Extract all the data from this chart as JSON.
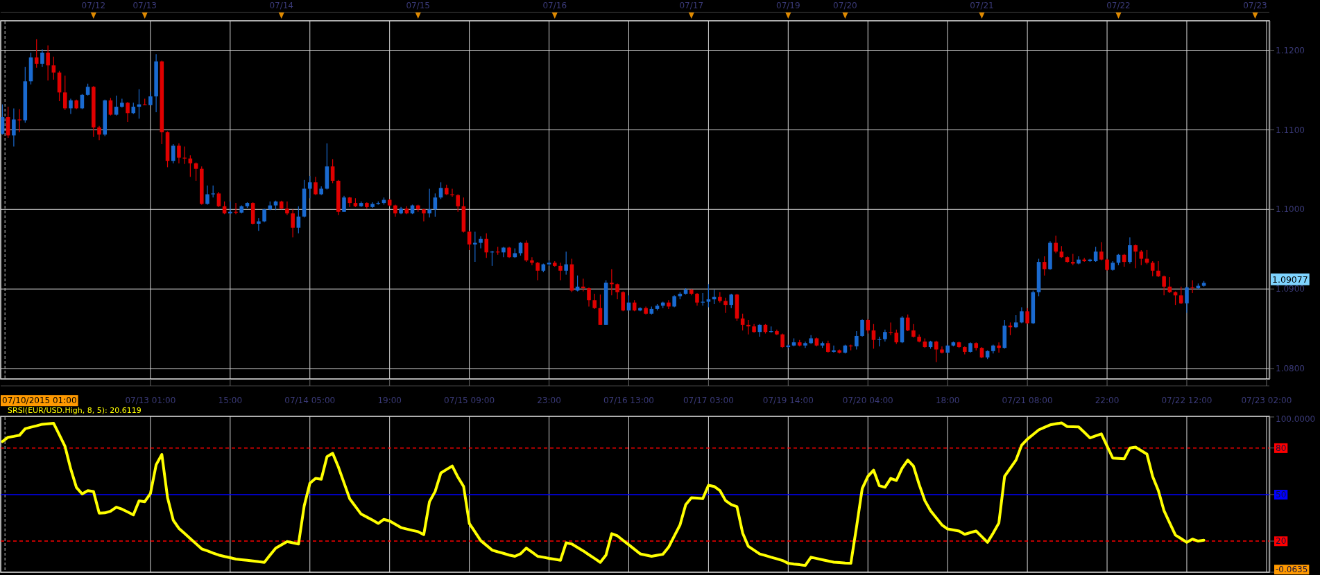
{
  "chart_data": [
    {
      "type": "other",
      "categories": [
        null,
        null,
        null,
        null,
        null,
        null,
        null,
        null,
        null,
        null,
        null,
        null,
        null,
        null,
        null,
        null,
        "07/12",
        null,
        null,
        null,
        null,
        null,
        null,
        null,
        null,
        "07/13",
        null,
        null,
        null,
        null,
        null,
        null,
        null,
        null,
        null,
        null,
        null,
        null,
        null,
        null,
        null,
        null,
        null,
        null,
        null,
        null,
        null,
        null,
        null,
        "07/14",
        null,
        null,
        null,
        null,
        null,
        null,
        null,
        null,
        null,
        null,
        null,
        null,
        null,
        null,
        null,
        null,
        null,
        null,
        null,
        null,
        null,
        null,
        null,
        "07/15",
        null,
        null,
        null,
        null,
        null,
        null,
        null,
        null,
        null,
        null,
        null,
        null,
        null,
        null,
        null,
        null,
        null,
        null,
        null,
        null,
        null,
        null,
        null,
        "07/16",
        null,
        null,
        null,
        null,
        null,
        null,
        null,
        null,
        null,
        null,
        null,
        null,
        null,
        null,
        null,
        null,
        null,
        null,
        null,
        null,
        null,
        null,
        null,
        "07/17",
        null,
        null,
        null,
        null,
        null,
        null,
        null,
        null,
        null,
        null,
        null,
        null,
        null,
        null,
        null,
        null,
        "07/19",
        null,
        null,
        null,
        null,
        null,
        null,
        null,
        null,
        null,
        "07/20",
        null,
        null,
        null,
        null,
        null,
        null,
        null,
        null,
        null,
        null,
        null,
        null,
        null,
        null,
        null,
        null,
        null,
        null,
        null,
        null,
        null,
        null,
        null,
        "07/21",
        null,
        null,
        null,
        null,
        null,
        null,
        null,
        null,
        null,
        null,
        null,
        null,
        null,
        null,
        null,
        null,
        null,
        null,
        null,
        null,
        null,
        null,
        null,
        "07/22",
        null,
        null,
        null,
        null,
        null,
        null,
        null,
        null,
        null,
        null,
        null,
        null,
        null,
        null,
        null,
        null,
        null,
        null,
        null,
        null,
        null,
        null,
        null,
        "07/23",
        null,
        null
      ]
    },
    {
      "type": "candlestick",
      "ylim": [
        1.0787,
        1.1237
      ],
      "categories": [
        null,
        null,
        null,
        null,
        null,
        null,
        null,
        null,
        null,
        null,
        null,
        null,
        null,
        null,
        null,
        null,
        null,
        null,
        null,
        null,
        null,
        null,
        null,
        null,
        null,
        null,
        "07/13 01:00",
        null,
        null,
        null,
        null,
        null,
        null,
        null,
        null,
        null,
        null,
        null,
        null,
        null,
        "15:00",
        null,
        null,
        null,
        null,
        null,
        null,
        null,
        null,
        null,
        null,
        null,
        null,
        null,
        "07/14 05:00",
        null,
        null,
        null,
        null,
        null,
        null,
        null,
        null,
        null,
        null,
        null,
        null,
        null,
        "19:00",
        null,
        null,
        null,
        null,
        null,
        null,
        null,
        null,
        null,
        null,
        null,
        null,
        null,
        "07/15 09:00",
        null,
        null,
        null,
        null,
        null,
        null,
        null,
        null,
        null,
        null,
        null,
        null,
        null,
        "23:00",
        null,
        null,
        null,
        null,
        null,
        null,
        null,
        null,
        null,
        null,
        null,
        null,
        null,
        "07/16 13:00",
        null,
        null,
        null,
        null,
        null,
        null,
        null,
        null,
        null,
        null,
        null,
        null,
        null,
        "07/17 03:00",
        null,
        null,
        null,
        null,
        null,
        null,
        null,
        null,
        null,
        null,
        null,
        null,
        null,
        "07/19 14:00",
        null,
        null,
        null,
        null,
        null,
        null,
        null,
        null,
        null,
        null,
        null,
        null,
        null,
        "07/20 04:00",
        null,
        null,
        null,
        null,
        null,
        null,
        null,
        null,
        null,
        null,
        null,
        null,
        null,
        "18:00",
        null,
        null,
        null,
        null,
        null,
        null,
        null,
        null,
        null,
        null,
        null,
        null,
        null,
        "07/21 08:00",
        null,
        null,
        null,
        null,
        null,
        null,
        null,
        null,
        null,
        null,
        null,
        null,
        null,
        "22:00",
        null,
        null,
        null,
        null,
        null,
        null,
        null,
        null,
        null,
        null,
        null,
        null,
        null,
        "07/22 12:00",
        null,
        null,
        null,
        null,
        null,
        null,
        null,
        null,
        null,
        null,
        null,
        null,
        null,
        "07/23 02:00"
      ],
      "ohlc": [
        [
          1.1095,
          1.1132,
          1.1094,
          1.1116
        ],
        [
          1.1116,
          1.1129,
          1.109,
          1.1093
        ],
        [
          1.1093,
          1.1127,
          1.1079,
          1.1113
        ],
        [
          1.1113,
          1.1126,
          1.1097,
          1.1112
        ],
        [
          1.1112,
          1.1179,
          1.1109,
          1.1161
        ],
        [
          1.1161,
          1.1197,
          1.1157,
          1.1191
        ],
        [
          1.1191,
          1.1214,
          1.1178,
          1.1183
        ],
        [
          1.1183,
          1.1201,
          1.1179,
          1.1197
        ],
        [
          1.1197,
          1.1206,
          1.1162,
          1.1181
        ],
        [
          1.1181,
          1.1192,
          1.1163,
          1.1172
        ],
        [
          1.1172,
          1.1174,
          1.1136,
          1.1147
        ],
        [
          1.1147,
          1.1168,
          1.1125,
          1.1127
        ],
        [
          1.1127,
          1.1139,
          1.112,
          1.1137
        ],
        [
          1.1137,
          1.1138,
          1.1126,
          1.1127
        ],
        [
          1.1127,
          1.1145,
          1.1126,
          1.1144
        ],
        [
          1.1144,
          1.1158,
          1.1143,
          1.1154
        ],
        [
          1.1154,
          1.1155,
          1.1091,
          1.1103
        ],
        [
          1.1103,
          1.1105,
          1.1087,
          1.1094
        ],
        [
          1.1094,
          1.1138,
          1.1092,
          1.1137
        ],
        [
          1.1137,
          1.114,
          1.1118,
          1.1119
        ],
        [
          1.1119,
          1.1143,
          1.1118,
          1.1129
        ],
        [
          1.1129,
          1.1139,
          1.1128,
          1.1134
        ],
        [
          1.1134,
          1.1135,
          1.111,
          1.1121
        ],
        [
          1.1121,
          1.1134,
          1.112,
          1.1129
        ],
        [
          1.1129,
          1.1151,
          1.1114,
          1.1132
        ],
        [
          1.1132,
          1.1139,
          1.1131,
          1.1131
        ],
        [
          1.1131,
          1.1148,
          1.1131,
          1.1142
        ],
        [
          1.1142,
          1.1195,
          1.1122,
          1.1186
        ],
        [
          1.1186,
          1.1187,
          1.1082,
          1.1097
        ],
        [
          1.1097,
          1.1098,
          1.1053,
          1.1061
        ],
        [
          1.1061,
          1.1082,
          1.1058,
          1.108
        ],
        [
          1.108,
          1.1083,
          1.1058,
          1.1065
        ],
        [
          1.1065,
          1.1079,
          1.1057,
          1.1064
        ],
        [
          1.1064,
          1.1068,
          1.1041,
          1.1058
        ],
        [
          1.1058,
          1.1059,
          1.1036,
          1.1051
        ],
        [
          1.1051,
          1.1054,
          1.1006,
          1.1007
        ],
        [
          1.1007,
          1.103,
          1.1006,
          1.1019
        ],
        [
          1.1019,
          1.103,
          1.1015,
          1.102
        ],
        [
          1.102,
          1.1022,
          1.1003,
          1.1004
        ],
        [
          1.1004,
          1.101,
          1.0994,
          1.0995
        ],
        [
          1.0995,
          1.101,
          1.0994,
          1.0997
        ],
        [
          1.0997,
          1.1008,
          1.0994,
          1.0996
        ],
        [
          1.0996,
          1.1005,
          1.0995,
          1.1004
        ],
        [
          1.1004,
          1.1009,
          1.1002,
          1.1008
        ],
        [
          1.1008,
          1.1009,
          1.0981,
          1.0982
        ],
        [
          1.0982,
          1.0989,
          1.0973,
          1.0985
        ],
        [
          1.0985,
          1.1001,
          1.0984,
          1.1
        ],
        [
          1.1,
          1.101,
          1.0999,
          1.1005
        ],
        [
          1.1005,
          1.1011,
          1.0999,
          1.101
        ],
        [
          1.101,
          1.1011,
          1.1,
          1.1001
        ],
        [
          1.1001,
          1.101,
          1.0993,
          1.0995
        ],
        [
          1.0995,
          1.1,
          1.0965,
          1.0977
        ],
        [
          1.0977,
          1.1004,
          1.097,
          1.0991
        ],
        [
          1.0991,
          1.1037,
          1.099,
          1.1026
        ],
        [
          1.1026,
          1.1042,
          1.1014,
          1.1034
        ],
        [
          1.1034,
          1.1041,
          1.1018,
          1.1019
        ],
        [
          1.1019,
          1.1029,
          1.1018,
          1.1026
        ],
        [
          1.1026,
          1.1083,
          1.1025,
          1.1054
        ],
        [
          1.1054,
          1.1063,
          1.1033,
          1.1036
        ],
        [
          1.1036,
          1.1037,
          1.0993,
          1.0997
        ],
        [
          1.0997,
          1.1017,
          1.0997,
          1.1015
        ],
        [
          1.1015,
          1.1016,
          1.1003,
          1.1008
        ],
        [
          1.1008,
          1.1014,
          1.1003,
          1.1004
        ],
        [
          1.1004,
          1.101,
          1.1003,
          1.1008
        ],
        [
          1.1008,
          1.1009,
          1.1001,
          1.1003
        ],
        [
          1.1003,
          1.1009,
          1.1002,
          1.1007
        ],
        [
          1.1007,
          1.101,
          1.1006,
          1.1008
        ],
        [
          1.1008,
          1.1015,
          1.1006,
          1.1012
        ],
        [
          1.1012,
          1.1013,
          1.1004,
          1.1005
        ],
        [
          1.1005,
          1.1006,
          1.0991,
          1.0995
        ],
        [
          1.0995,
          1.1003,
          1.0994,
          1.1001
        ],
        [
          1.1001,
          1.1004,
          1.0994,
          1.0995
        ],
        [
          1.0995,
          1.1006,
          1.0994,
          1.1005
        ],
        [
          1.1005,
          1.1006,
          1.0997,
          1.1
        ],
        [
          1.1,
          1.1001,
          1.0985,
          1.0995
        ],
        [
          1.0995,
          1.1026,
          1.099,
          1.1
        ],
        [
          1.1,
          1.102,
          1.0991,
          1.1015
        ],
        [
          1.1015,
          1.1034,
          1.1013,
          1.1027
        ],
        [
          1.1027,
          1.1031,
          1.1018,
          1.1019
        ],
        [
          1.1019,
          1.1026,
          1.1016,
          1.1018
        ],
        [
          1.1018,
          1.1019,
          1.0997,
          1.1004
        ],
        [
          1.1004,
          1.1015,
          1.0971,
          1.0972
        ],
        [
          1.0972,
          1.0973,
          1.0949,
          1.0956
        ],
        [
          1.0956,
          1.0972,
          1.0934,
          1.0958
        ],
        [
          1.0958,
          1.0966,
          1.0951,
          1.0963
        ],
        [
          1.0963,
          1.097,
          1.0939,
          1.0946
        ],
        [
          1.0946,
          1.0948,
          1.0929,
          1.0947
        ],
        [
          1.0947,
          1.0953,
          1.0943,
          1.0946
        ],
        [
          1.0946,
          1.0953,
          1.094,
          1.0952
        ],
        [
          1.0952,
          1.0953,
          1.0939,
          1.094
        ],
        [
          1.094,
          1.0951,
          1.0939,
          1.0945
        ],
        [
          1.0945,
          1.0959,
          1.0942,
          1.0958
        ],
        [
          1.0958,
          1.0961,
          1.0934,
          1.0936
        ],
        [
          1.0936,
          1.094,
          1.093,
          1.0933
        ],
        [
          1.0933,
          1.0934,
          1.0911,
          1.0923
        ],
        [
          1.0923,
          1.0932,
          1.0921,
          1.0931
        ],
        [
          1.0931,
          1.0936,
          1.0929,
          1.0933
        ],
        [
          1.0933,
          1.0935,
          1.0928,
          1.0929
        ],
        [
          1.0929,
          1.0933,
          1.0911,
          1.0923
        ],
        [
          1.0923,
          1.0947,
          1.0918,
          1.0931
        ],
        [
          1.0931,
          1.0938,
          1.0896,
          1.0898
        ],
        [
          1.0898,
          1.0917,
          1.0897,
          1.0903
        ],
        [
          1.0903,
          1.0913,
          1.0897,
          1.0901
        ],
        [
          1.0901,
          1.0902,
          1.0878,
          1.0886
        ],
        [
          1.0886,
          1.0894,
          1.0875,
          1.0876
        ],
        [
          1.0876,
          1.0893,
          1.0855,
          1.0855
        ],
        [
          1.0855,
          1.0911,
          1.0855,
          1.0908
        ],
        [
          1.0908,
          1.0925,
          1.0892,
          1.0906
        ],
        [
          1.0906,
          1.0907,
          1.0887,
          1.0896
        ],
        [
          1.0896,
          1.0897,
          1.0872,
          1.0873
        ],
        [
          1.0873,
          1.0892,
          1.0873,
          1.0883
        ],
        [
          1.0883,
          1.0886,
          1.0872,
          1.0873
        ],
        [
          1.0873,
          1.0877,
          1.0872,
          1.0876
        ],
        [
          1.0876,
          1.0878,
          1.0868,
          1.0869
        ],
        [
          1.0869,
          1.0878,
          1.0868,
          1.0875
        ],
        [
          1.0875,
          1.0881,
          1.0873,
          1.0879
        ],
        [
          1.0879,
          1.0884,
          1.0876,
          1.0883
        ],
        [
          1.0883,
          1.0886,
          1.0875,
          1.0878
        ],
        [
          1.0878,
          1.0892,
          1.0877,
          1.0891
        ],
        [
          1.0891,
          1.0896,
          1.0887,
          1.0894
        ],
        [
          1.0894,
          1.0901,
          1.0893,
          1.0899
        ],
        [
          1.0899,
          1.09,
          1.0892,
          1.0894
        ],
        [
          1.0894,
          1.0895,
          1.0879,
          1.0883
        ],
        [
          1.0883,
          1.0895,
          1.0879,
          1.0884
        ],
        [
          1.0884,
          1.0906,
          1.0877,
          1.0887
        ],
        [
          1.0887,
          1.0899,
          1.0881,
          1.089
        ],
        [
          1.089,
          1.0896,
          1.0883,
          1.0885
        ],
        [
          1.0885,
          1.0889,
          1.087,
          1.088
        ],
        [
          1.088,
          1.0894,
          1.0876,
          1.0893
        ],
        [
          1.0893,
          1.0894,
          1.086,
          1.0863
        ],
        [
          1.0863,
          1.0869,
          1.0848,
          1.0855
        ],
        [
          1.0855,
          1.0861,
          1.0843,
          1.0853
        ],
        [
          1.0853,
          1.0856,
          1.0845,
          1.0846
        ],
        [
          1.0846,
          1.0856,
          1.084,
          1.0855
        ],
        [
          1.0855,
          1.0856,
          1.0844,
          1.0846
        ],
        [
          1.0846,
          1.0853,
          1.0845,
          1.0847
        ],
        [
          1.0847,
          1.0849,
          1.0842,
          1.0843
        ],
        [
          1.0843,
          1.0844,
          1.0826,
          1.0827
        ],
        [
          1.0827,
          1.083,
          1.0826,
          1.0829
        ],
        [
          1.0829,
          1.0838,
          1.0828,
          1.0833
        ],
        [
          1.0833,
          1.0836,
          1.0828,
          1.0829
        ],
        [
          1.0829,
          1.0834,
          1.0826,
          1.0832
        ],
        [
          1.0832,
          1.0842,
          1.0831,
          1.0838
        ],
        [
          1.0838,
          1.0839,
          1.0828,
          1.0829
        ],
        [
          1.0829,
          1.0834,
          1.0826,
          1.0832
        ],
        [
          1.0832,
          1.0835,
          1.082,
          1.0821
        ],
        [
          1.0821,
          1.0829,
          1.082,
          1.0823
        ],
        [
          1.0823,
          1.0824,
          1.0819,
          1.082
        ],
        [
          1.082,
          1.083,
          1.0819,
          1.0829
        ],
        [
          1.0829,
          1.083,
          1.0823,
          1.0828
        ],
        [
          1.0828,
          1.0847,
          1.0824,
          1.0841
        ],
        [
          1.0841,
          1.0862,
          1.084,
          1.0861
        ],
        [
          1.0861,
          1.0862,
          1.0844,
          1.0848
        ],
        [
          1.0848,
          1.0856,
          1.0825,
          1.0836
        ],
        [
          1.0836,
          1.084,
          1.0828,
          1.0837
        ],
        [
          1.0837,
          1.0849,
          1.0834,
          1.0846
        ],
        [
          1.0846,
          1.0858,
          1.0842,
          1.0845
        ],
        [
          1.0845,
          1.0849,
          1.0831,
          1.0833
        ],
        [
          1.0833,
          1.0866,
          1.0832,
          1.0864
        ],
        [
          1.0864,
          1.0868,
          1.0847,
          1.0848
        ],
        [
          1.0848,
          1.0856,
          1.0839,
          1.084
        ],
        [
          1.084,
          1.0843,
          1.0833,
          1.0834
        ],
        [
          1.0834,
          1.0838,
          1.0826,
          1.0827
        ],
        [
          1.0827,
          1.0835,
          1.0825,
          1.0834
        ],
        [
          1.0834,
          1.0835,
          1.0808,
          1.0824
        ],
        [
          1.0824,
          1.0828,
          1.0819,
          1.082
        ],
        [
          1.082,
          1.083,
          1.0819,
          1.0829
        ],
        [
          1.0829,
          1.0834,
          1.0828,
          1.0833
        ],
        [
          1.0833,
          1.0834,
          1.0826,
          1.0827
        ],
        [
          1.0827,
          1.0828,
          1.0818,
          1.0821
        ],
        [
          1.0821,
          1.0833,
          1.082,
          1.0832
        ],
        [
          1.0832,
          1.0833,
          1.0823,
          1.0826
        ],
        [
          1.0826,
          1.0827,
          1.0813,
          1.0814
        ],
        [
          1.0814,
          1.0823,
          1.0812,
          1.0822
        ],
        [
          1.0822,
          1.083,
          1.0819,
          1.0829
        ],
        [
          1.0829,
          1.0833,
          1.082,
          1.0826
        ],
        [
          1.0826,
          1.0861,
          1.0825,
          1.0854
        ],
        [
          1.0854,
          1.0858,
          1.0842,
          1.0852
        ],
        [
          1.0852,
          1.0867,
          1.0851,
          1.0858
        ],
        [
          1.0858,
          1.0877,
          1.0857,
          1.0872
        ],
        [
          1.0872,
          1.0876,
          1.0856,
          1.0857
        ],
        [
          1.0857,
          1.0898,
          1.0856,
          1.0896
        ],
        [
          1.0896,
          1.0938,
          1.0891,
          1.0934
        ],
        [
          1.0934,
          1.0941,
          1.0917,
          1.0925
        ],
        [
          1.0925,
          1.096,
          1.0924,
          1.0958
        ],
        [
          1.0958,
          1.0967,
          1.0945,
          1.0947
        ],
        [
          1.0947,
          1.0954,
          1.0939,
          1.094
        ],
        [
          1.094,
          1.0941,
          1.0933,
          1.0934
        ],
        [
          1.0934,
          1.0944,
          1.093,
          1.0932
        ],
        [
          1.0932,
          1.0941,
          1.0931,
          1.0937
        ],
        [
          1.0937,
          1.0939,
          1.0934,
          1.0935
        ],
        [
          1.0935,
          1.0938,
          1.0934,
          1.0937
        ],
        [
          1.0935,
          1.0953,
          1.0934,
          1.0947
        ],
        [
          1.0947,
          1.0959,
          1.0936,
          1.0937
        ],
        [
          1.0937,
          1.0938,
          1.0923,
          1.0924
        ],
        [
          1.0924,
          1.0935,
          1.0923,
          1.0933
        ],
        [
          1.0933,
          1.0944,
          1.093,
          1.0943
        ],
        [
          1.0943,
          1.0944,
          1.0928,
          1.0934
        ],
        [
          1.0934,
          1.0965,
          1.0932,
          1.0955
        ],
        [
          1.0955,
          1.0956,
          1.0926,
          1.0947
        ],
        [
          1.0947,
          1.0949,
          1.093,
          1.0938
        ],
        [
          1.0938,
          1.0949,
          1.0931,
          1.0933
        ],
        [
          1.0933,
          1.0935,
          1.0916,
          1.0923
        ],
        [
          1.0923,
          1.0935,
          1.0915,
          1.0916
        ],
        [
          1.0916,
          1.0917,
          1.0892,
          1.0903
        ],
        [
          1.0903,
          1.0915,
          1.0895,
          1.0896
        ],
        [
          1.0896,
          1.0897,
          1.088,
          1.0892
        ],
        [
          1.0892,
          1.0903,
          1.0881,
          1.0882
        ],
        [
          1.0882,
          1.0903,
          1.087,
          1.0902
        ],
        [
          1.0902,
          1.0911,
          1.0895,
          1.0901
        ],
        [
          1.0901,
          1.0907,
          1.09,
          1.0904
        ],
        [
          1.0904,
          1.091,
          1.0903,
          1.09077
        ],
        null,
        null,
        null,
        null,
        null,
        null,
        null,
        null,
        null,
        null,
        null
      ],
      "yticks": [
        {
          "value": 1.08,
          "label": "1.0800"
        },
        {
          "value": 1.09,
          "label": "1.0900"
        },
        {
          "value": 1.1,
          "label": "1.1000"
        },
        {
          "value": 1.11,
          "label": "1.1100"
        },
        {
          "value": 1.12,
          "label": "1.1200"
        }
      ],
      "grid": true,
      "annotations": [
        "1.09077"
      ]
    },
    {
      "type": "line",
      "ylim": [
        -0.0635,
        100.4
      ],
      "annotations": [
        "07/10/2015 01:00"
      ],
      "categories": [
        null,
        null,
        null,
        null,
        null,
        null,
        null,
        null,
        null,
        null,
        null,
        null,
        null,
        null,
        null,
        null,
        null,
        null,
        null,
        null,
        null,
        null,
        null,
        null,
        null,
        null,
        null,
        null,
        null,
        null,
        null,
        null,
        null,
        null,
        null,
        null,
        null,
        null,
        null,
        null,
        null,
        null,
        null,
        null,
        null,
        null,
        null,
        null,
        null,
        null,
        null,
        null,
        null,
        null,
        null,
        null,
        null,
        null,
        null,
        null,
        null,
        null,
        null,
        null,
        null,
        null,
        null,
        null,
        null,
        null,
        null,
        null,
        null,
        null,
        null,
        null,
        null,
        null,
        null,
        null,
        null,
        null,
        null,
        null,
        null,
        null,
        null,
        null,
        null,
        null,
        null,
        null,
        null,
        null,
        null,
        null,
        null,
        null,
        null,
        null,
        null,
        null,
        null,
        null,
        null,
        null,
        null,
        null,
        null,
        null,
        null,
        null,
        null,
        null,
        null,
        null,
        null,
        null,
        null,
        null,
        null,
        null,
        null,
        null,
        null,
        null,
        null,
        null,
        null,
        null,
        null,
        null,
        null,
        null,
        null,
        null,
        null,
        null,
        null,
        null,
        null,
        null,
        null,
        null,
        null,
        null,
        null,
        null,
        null,
        null,
        null,
        null,
        null,
        null,
        null,
        null,
        null,
        null,
        null,
        null,
        null,
        null,
        null,
        null,
        null,
        null,
        null,
        null,
        null,
        null,
        null,
        null,
        null,
        null,
        null,
        null,
        null,
        null,
        null,
        null,
        null,
        null,
        null,
        null,
        null,
        null,
        null,
        null,
        null,
        null,
        null,
        null,
        null,
        null,
        null,
        null,
        null,
        null,
        null,
        null,
        null,
        null,
        null,
        null,
        null,
        null,
        null,
        null,
        null,
        null,
        null,
        null,
        null,
        null,
        null,
        null,
        null,
        null,
        null,
        null,
        null,
        null,
        null
      ],
      "yticks": [
        {
          "value": -0.0635,
          "label": "-0.0635"
        },
        20,
        50,
        80,
        {
          "value": 100,
          "label": "100.0000"
        }
      ],
      "tick_labels": "y",
      "grid": "x",
      "legend": "top left",
      "ref_lines": [
        {
          "axis": "y",
          "value": 80,
          "color": "#ff0000",
          "line_style": "dashed"
        },
        {
          "axis": "y",
          "value": 50,
          "color": "#0000ff",
          "line_style": "solid"
        },
        {
          "axis": "y",
          "value": 20,
          "color": "#ff0000",
          "line_style": "dashed"
        }
      ],
      "series": [
        {
          "name": "SRSI(EUR/USD.High, 8, 5): 20.6119",
          "color": "#ffff00",
          "values": [
            84.2,
            86.9,
            87.5,
            88.2,
            92.4,
            93.4,
            94.3,
            95.3,
            95.6,
            95.9,
            88.5,
            81,
            66.5,
            54.6,
            50.4,
            52.5,
            52,
            38,
            38.2,
            39.3,
            41.9,
            40.6,
            38.8,
            36.9,
            45.9,
            45.4,
            50.7,
            69.2,
            75.8,
            48,
            33.5,
            28.2,
            24.9,
            21.6,
            18.3,
            15,
            13.7,
            12.3,
            11,
            10.1,
            9.3,
            8.4,
            8,
            7.6,
            7.2,
            6.7,
            6.3,
            11,
            15.5,
            17.6,
            19.7,
            18.9,
            18.1,
            42.7,
            57.3,
            60.4,
            59.9,
            74.4,
            76.6,
            67.8,
            57.5,
            47.2,
            42.3,
            37.4,
            35.5,
            33.5,
            31.4,
            34,
            33,
            30.9,
            28.7,
            27.8,
            26.9,
            26.1,
            24.2,
            45.4,
            52,
            63.9,
            66.2,
            68.4,
            61.2,
            55.2,
            31.4,
            25.9,
            20.3,
            17.3,
            14.2,
            13.1,
            12.1,
            11,
            10.2,
            11.8,
            15.5,
            12.9,
            10.2,
            9.6,
            8.9,
            8.3,
            7.6,
            18.9,
            18.1,
            15.9,
            13.7,
            11.2,
            8.8,
            6.3,
            11,
            24.8,
            23.4,
            20.5,
            17.6,
            14.7,
            11.8,
            11,
            10.2,
            10.9,
            11.5,
            16.1,
            23.3,
            30.4,
            43.5,
            47.9,
            47.7,
            47.4,
            56,
            55.2,
            52.6,
            46.1,
            43.5,
            42.2,
            25.2,
            16.6,
            14.2,
            11.7,
            10.7,
            9.6,
            8.6,
            7.5,
            5.7,
            5.2,
            4.8,
            4.3,
            9.6,
            8.8,
            8,
            7.2,
            6.4,
            6.2,
            5.9,
            5.7,
            29.1,
            53.9,
            61.7,
            65.7,
            55.7,
            54.7,
            60.4,
            59.1,
            67,
            72.2,
            68.3,
            56.5,
            46.1,
            39.6,
            35,
            30.4,
            27.8,
            27.2,
            26.5,
            24.4,
            25.5,
            26.5,
            22.9,
            19.2,
            25.2,
            31.7,
            61.7,
            67,
            72.2,
            81.8,
            85.7,
            88.7,
            91.7,
            93.3,
            94.9,
            95.6,
            96.2,
            93.8,
            93.7,
            93.6,
            90.1,
            86.5,
            87.8,
            89.1,
            81.3,
            73.5,
            73.3,
            73,
            80,
            80.5,
            78.3,
            76.1,
            61.7,
            52.6,
            39.6,
            31.7,
            23.9,
            21.6,
            19.2,
            21.3,
            20,
            20.6,
            null,
            null,
            null,
            null,
            null,
            null,
            null,
            null,
            null,
            null,
            null
          ]
        }
      ]
    }
  ]
}
